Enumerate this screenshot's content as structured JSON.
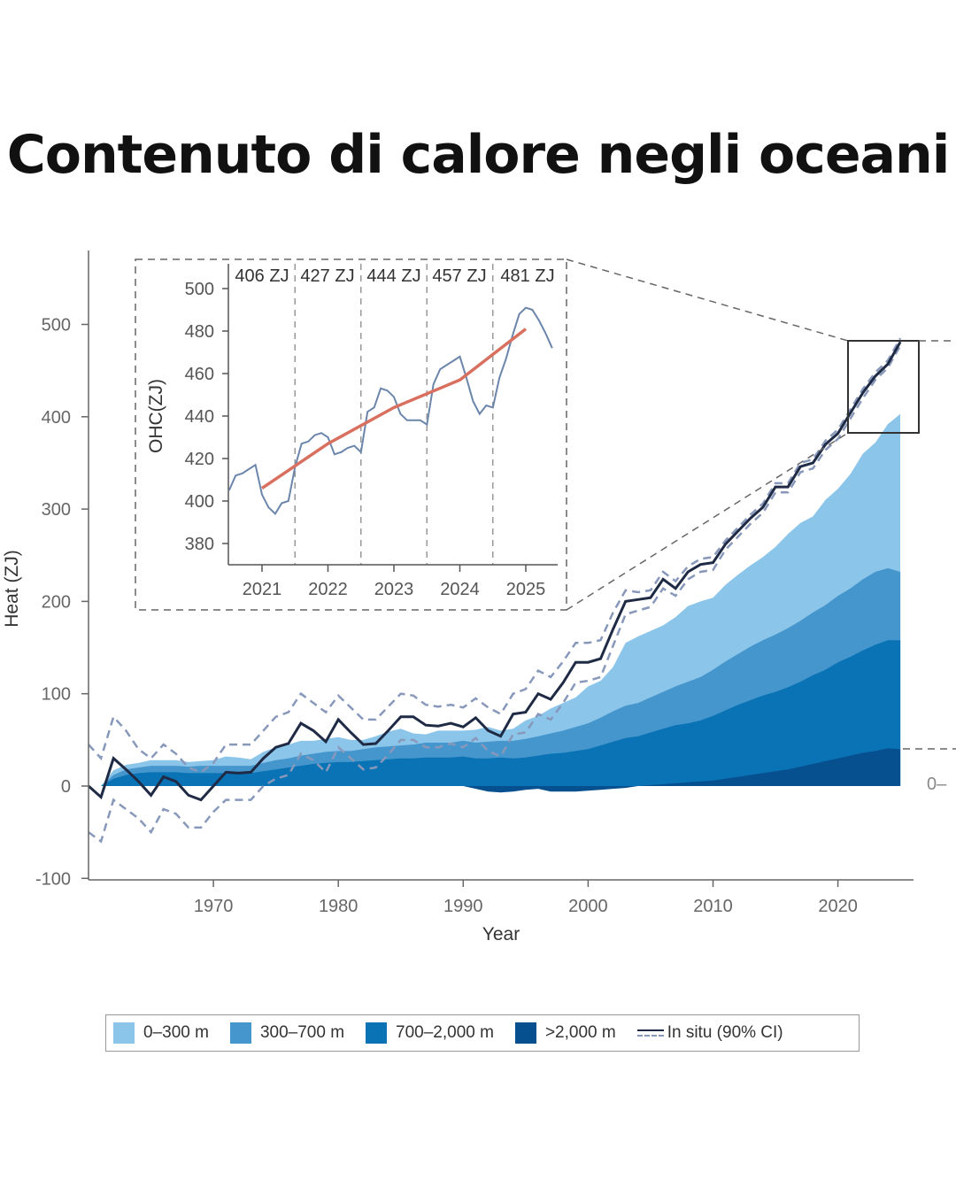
{
  "title": "Contenuto di calore negli oceani",
  "chart_data": [
    {
      "type": "area",
      "stacked": true,
      "xlabel": "Year",
      "ylabel": "Heat (ZJ)",
      "xlim": [
        1960,
        2026
      ],
      "ylim": [
        -100,
        550
      ],
      "x_ticks": [
        1970,
        1980,
        1990,
        2000,
        2010,
        2020
      ],
      "y_ticks": [
        -100,
        0,
        100,
        200,
        300,
        400,
        500
      ],
      "x": [
        1960,
        1961,
        1962,
        1963,
        1964,
        1965,
        1966,
        1967,
        1968,
        1969,
        1970,
        1971,
        1972,
        1973,
        1974,
        1975,
        1976,
        1977,
        1978,
        1979,
        1980,
        1981,
        1982,
        1983,
        1984,
        1985,
        1986,
        1987,
        1988,
        1989,
        1990,
        1991,
        1992,
        1993,
        1994,
        1995,
        1996,
        1997,
        1998,
        1999,
        2000,
        2001,
        2002,
        2003,
        2004,
        2005,
        2006,
        2007,
        2008,
        2009,
        2010,
        2011,
        2012,
        2013,
        2014,
        2015,
        2016,
        2017,
        2018,
        2019,
        2020,
        2021,
        2022,
        2023,
        2024,
        2025
      ],
      "series": [
        {
          "name": ">2,000 m",
          "color": "#06508f",
          "values": [
            0,
            0,
            0,
            0,
            0,
            0,
            0,
            0,
            0,
            0,
            0,
            0,
            0,
            0,
            0,
            0,
            0,
            0,
            0,
            0,
            0,
            0,
            0,
            0,
            0,
            0,
            0,
            0,
            0,
            0,
            0,
            -3,
            -6,
            -7,
            -6,
            -4,
            -3,
            -6,
            -6,
            -6,
            -5,
            -4,
            -3,
            -2,
            0,
            1,
            2,
            3,
            4,
            5,
            6,
            8,
            10,
            12,
            14,
            16,
            18,
            21,
            24,
            27,
            30,
            33,
            36,
            38,
            41,
            40
          ]
        },
        {
          "name": "700–2,000 m",
          "color": "#0a73b5",
          "values": [
            0,
            0,
            8,
            12,
            14,
            15,
            15,
            15,
            14,
            14,
            14,
            14,
            14,
            14,
            16,
            18,
            20,
            22,
            24,
            25,
            26,
            26,
            27,
            28,
            29,
            30,
            30,
            31,
            31,
            31,
            32,
            30,
            30,
            31,
            30,
            31,
            33,
            35,
            36,
            38,
            40,
            44,
            48,
            52,
            54,
            57,
            60,
            63,
            64,
            66,
            70,
            74,
            78,
            81,
            84,
            86,
            89,
            92,
            96,
            99,
            104,
            107,
            111,
            115,
            117,
            118
          ]
        },
        {
          "name": "300–700 m",
          "color": "#4596cc",
          "values": [
            0,
            0,
            4,
            6,
            6,
            7,
            7,
            7,
            7,
            8,
            8,
            8,
            8,
            8,
            9,
            10,
            10,
            11,
            11,
            12,
            12,
            12,
            13,
            14,
            14,
            14,
            15,
            16,
            16,
            16,
            17,
            17,
            18,
            18,
            19,
            20,
            21,
            22,
            24,
            26,
            28,
            30,
            33,
            35,
            36,
            38,
            40,
            42,
            45,
            47,
            50,
            53,
            55,
            58,
            60,
            62,
            64,
            66,
            68,
            70,
            72,
            74,
            77,
            79,
            78,
            74
          ]
        },
        {
          "name": "0–300 m",
          "color": "#8cc5ea",
          "values": [
            0,
            0,
            5,
            5,
            5,
            6,
            6,
            6,
            5,
            5,
            6,
            10,
            9,
            7,
            12,
            14,
            15,
            16,
            14,
            14,
            15,
            12,
            10,
            12,
            16,
            18,
            12,
            9,
            13,
            13,
            11,
            14,
            16,
            11,
            13,
            20,
            22,
            27,
            30,
            32,
            40,
            40,
            48,
            68,
            72,
            72,
            72,
            75,
            82,
            82,
            78,
            83,
            86,
            88,
            90,
            95,
            102,
            106,
            104,
            114,
            116,
            124,
            136,
            140,
            156,
            171
          ]
        }
      ],
      "in_situ": {
        "name": "In situ (90% CI)",
        "color": "#1f2a44",
        "ci_color": "#8898bb",
        "values": [
          0,
          -12,
          30,
          18,
          5,
          -10,
          10,
          5,
          -10,
          -15,
          0,
          15,
          14,
          15,
          30,
          42,
          46,
          68,
          60,
          48,
          72,
          58,
          45,
          46,
          60,
          75,
          75,
          66,
          65,
          68,
          64,
          74,
          60,
          54,
          78,
          80,
          100,
          94,
          112,
          134,
          134,
          138,
          170,
          200,
          202,
          204,
          224,
          214,
          232,
          240,
          242,
          262,
          276,
          290,
          302,
          324,
          324,
          346,
          350,
          370,
          382,
          404,
          426,
          444,
          457,
          481
        ],
        "ci_upper": [
          45,
          30,
          75,
          60,
          40,
          30,
          45,
          35,
          20,
          15,
          25,
          45,
          45,
          45,
          60,
          75,
          80,
          100,
          90,
          80,
          98,
          85,
          72,
          72,
          86,
          100,
          98,
          88,
          86,
          88,
          85,
          95,
          85,
          78,
          100,
          105,
          125,
          118,
          135,
          155,
          155,
          158,
          188,
          212,
          210,
          212,
          232,
          222,
          238,
          246,
          248,
          266,
          280,
          294,
          306,
          328,
          328,
          350,
          354,
          374,
          386,
          408,
          430,
          448,
          461,
          485
        ],
        "ci_lower": [
          -50,
          -60,
          -15,
          -25,
          -35,
          -50,
          -25,
          -30,
          -45,
          -45,
          -28,
          -15,
          -15,
          -15,
          0,
          8,
          12,
          35,
          28,
          15,
          42,
          30,
          18,
          20,
          34,
          50,
          50,
          42,
          42,
          46,
          42,
          52,
          38,
          32,
          56,
          58,
          78,
          72,
          90,
          112,
          114,
          118,
          152,
          186,
          190,
          194,
          214,
          206,
          224,
          232,
          234,
          256,
          270,
          284,
          296,
          318,
          318,
          340,
          344,
          364,
          376,
          398,
          420,
          440,
          453,
          477
        ]
      }
    },
    {
      "type": "line",
      "ylabel": "OHC(ZJ)",
      "xlim": [
        2020.5,
        2025.45
      ],
      "ylim": [
        370,
        505
      ],
      "x_ticks": [
        2021,
        2022,
        2023,
        2024,
        2025
      ],
      "y_ticks": [
        380,
        400,
        420,
        440,
        460,
        480,
        500
      ],
      "year_labels": [
        "406 ZJ",
        "427 ZJ",
        "444 ZJ",
        "457 ZJ",
        "481 ZJ"
      ],
      "dividers": [
        2021.5,
        2022.5,
        2023.5,
        2024.5
      ],
      "series": [
        {
          "name": "",
          "color": "#6b85ab",
          "x": [
            2020.5,
            2020.6,
            2020.7,
            2020.8,
            2020.9,
            2021.0,
            2021.1,
            2021.2,
            2021.3,
            2021.4,
            2021.5,
            2021.6,
            2021.7,
            2021.8,
            2021.9,
            2022.0,
            2022.1,
            2022.2,
            2022.3,
            2022.4,
            2022.5,
            2022.6,
            2022.7,
            2022.8,
            2022.9,
            2023.0,
            2023.1,
            2023.2,
            2023.3,
            2023.4,
            2023.5,
            2023.6,
            2023.7,
            2023.8,
            2023.9,
            2024.0,
            2024.1,
            2024.2,
            2024.3,
            2024.4,
            2024.5,
            2024.6,
            2024.7,
            2024.8,
            2024.9,
            2025.0,
            2025.1,
            2025.2,
            2025.3,
            2025.4
          ],
          "values": [
            405,
            412,
            413,
            415,
            417,
            403,
            397,
            394,
            399,
            400,
            416,
            427,
            428,
            431,
            432,
            430,
            422,
            423,
            425,
            426,
            423,
            442,
            444,
            453,
            452,
            449,
            441,
            438,
            438,
            438,
            436,
            455,
            462,
            464,
            466,
            468,
            458,
            447,
            441,
            445,
            444,
            458,
            467,
            478,
            488,
            491,
            490,
            485,
            479,
            472
          ]
        },
        {
          "name": "",
          "color": "#d9705f",
          "x": [
            2021,
            2022,
            2023,
            2024,
            2025
          ],
          "values": [
            406,
            427,
            444,
            457,
            481
          ]
        }
      ]
    }
  ],
  "right_edge_label": "0–",
  "legend": [
    {
      "label": "0–300 m",
      "color": "#8cc5ea"
    },
    {
      "label": "300–700 m",
      "color": "#4596cc"
    },
    {
      "label": "700–2,000 m",
      "color": "#0a73b5"
    },
    {
      "label": ">2,000 m",
      "color": "#06508f"
    },
    {
      "label": "In situ (90% CI)"
    }
  ]
}
